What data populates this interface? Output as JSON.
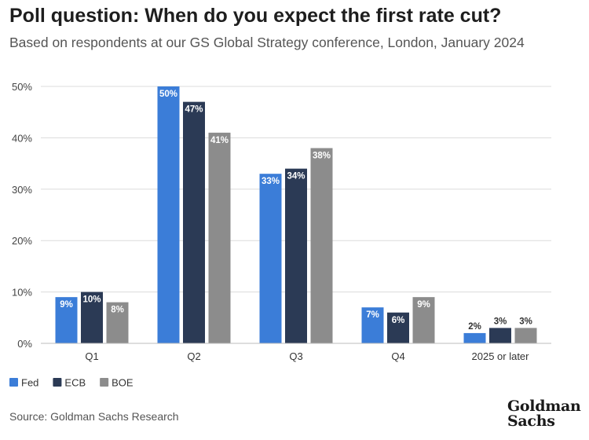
{
  "chart_data": {
    "type": "bar",
    "title": "Poll question: When do you expect the first rate cut?",
    "subtitle": "Based on respondents at our GS Global Strategy conference, London, January 2024",
    "categories": [
      "Q1",
      "Q2",
      "Q3",
      "Q4",
      "2025 or later"
    ],
    "series": [
      {
        "name": "Fed",
        "values": [
          9,
          50,
          33,
          7,
          2
        ],
        "color": "#3b7dd8"
      },
      {
        "name": "ECB",
        "values": [
          10,
          47,
          34,
          6,
          3
        ],
        "color": "#2b3a55"
      },
      {
        "name": "BOE",
        "values": [
          8,
          41,
          38,
          9,
          3
        ],
        "color": "#8c8c8c"
      }
    ],
    "ylim": [
      0,
      50
    ],
    "yticks": [
      0,
      10,
      20,
      30,
      40,
      50
    ],
    "ytick_labels": [
      "0%",
      "10%",
      "20%",
      "30%",
      "40%",
      "50%"
    ],
    "value_suffix": "%",
    "xlabel": "",
    "ylabel": "",
    "grid": true,
    "legend": "bottom-left"
  },
  "footer": {
    "source": "Source: Goldman Sachs Research",
    "logo_line1": "Goldman",
    "logo_line2": "Sachs"
  }
}
